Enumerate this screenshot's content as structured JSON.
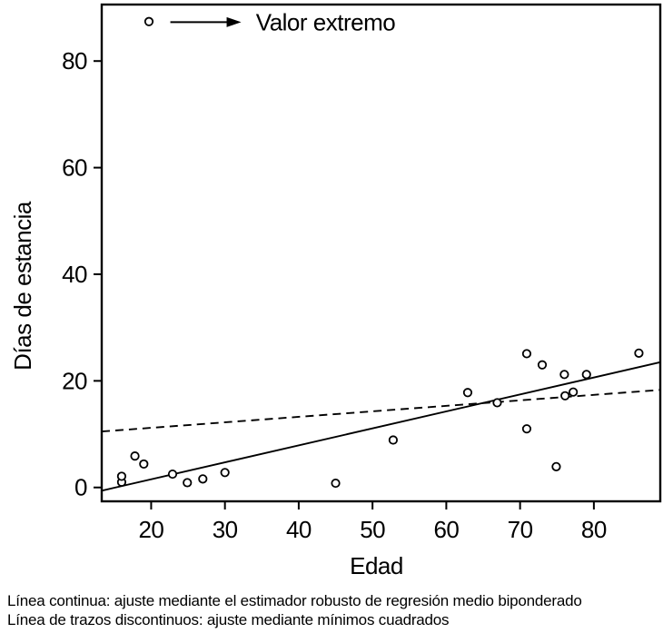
{
  "figure": {
    "background_color": "#ffffff",
    "ink_color": "#000000",
    "caption_lines": [
      "Línea continua: ajuste mediante el estimador robusto de regresión medio biponderado",
      "Línea de trazos discontinuos: ajuste mediante mínimos cuadrados"
    ]
  },
  "chart_data": {
    "type": "scatter",
    "title": "",
    "xlabel": "Edad",
    "ylabel": "Días de estancia",
    "xlim": [
      13.3,
      89
    ],
    "ylim": [
      -2.6,
      90.6
    ],
    "x_ticks": [
      20,
      30,
      40,
      50,
      60,
      70,
      80
    ],
    "y_ticks": [
      0,
      20,
      40,
      60,
      80
    ],
    "grid": false,
    "marker": "open-circle",
    "points": [
      {
        "x": 16.0,
        "y": 1.0
      },
      {
        "x": 16.0,
        "y": 2.1
      },
      {
        "x": 17.8,
        "y": 5.9
      },
      {
        "x": 19.0,
        "y": 4.4
      },
      {
        "x": 22.9,
        "y": 2.5
      },
      {
        "x": 24.9,
        "y": 0.9
      },
      {
        "x": 27.0,
        "y": 1.6
      },
      {
        "x": 30.0,
        "y": 2.8
      },
      {
        "x": 45.0,
        "y": 0.8
      },
      {
        "x": 52.8,
        "y": 8.9
      },
      {
        "x": 62.9,
        "y": 17.8
      },
      {
        "x": 66.9,
        "y": 15.9
      },
      {
        "x": 70.9,
        "y": 25.1
      },
      {
        "x": 73.0,
        "y": 23.0
      },
      {
        "x": 76.0,
        "y": 21.2
      },
      {
        "x": 79.0,
        "y": 21.2
      },
      {
        "x": 76.1,
        "y": 17.2
      },
      {
        "x": 77.2,
        "y": 17.9
      },
      {
        "x": 70.9,
        "y": 11.0
      },
      {
        "x": 74.9,
        "y": 3.9
      },
      {
        "x": 86.1,
        "y": 25.2
      },
      {
        "x": 19.7,
        "y": 87.4
      }
    ],
    "series": [
      {
        "name": "ajuste robusto (línea continua)",
        "style": "solid",
        "x1": 13.3,
        "y1": -0.6,
        "x2": 89.0,
        "y2": 23.5
      },
      {
        "name": "mínimos cuadrados (línea discontinua)",
        "style": "dashed",
        "x1": 13.3,
        "y1": 10.5,
        "x2": 89.0,
        "y2": 18.3
      }
    ],
    "annotation": {
      "label": "Valor extremo",
      "arrow_from_x": 22.6,
      "arrow_to_x": 32.2,
      "arrow_y": 87.3,
      "label_x": 34.2
    },
    "legend_position": "top-left-inside"
  }
}
